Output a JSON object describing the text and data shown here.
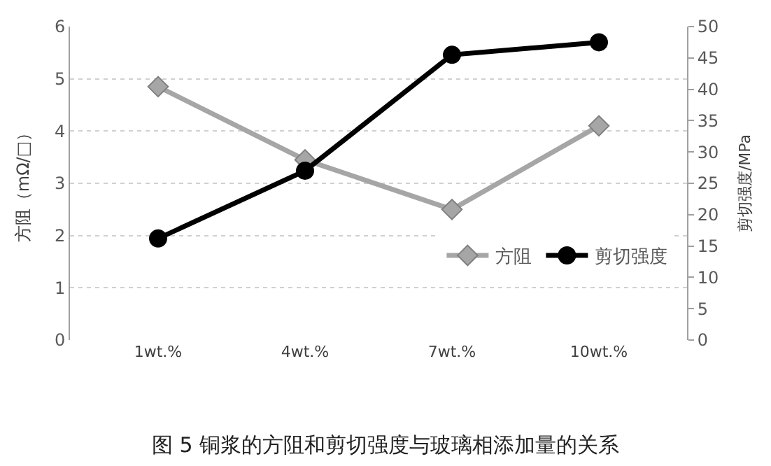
{
  "chart_data": {
    "type": "line",
    "title": "图 5 铜浆的方阻和剪切强度与玻璃相添加量的关系",
    "ylabel": "方阻（mΩ/□）",
    "y2label": "剪切强度/MPa",
    "categories": [
      "1wt.%",
      "4wt.%",
      "7wt.%",
      "10wt.%"
    ],
    "series": [
      {
        "name": "方阻",
        "color": "#a6a6a6",
        "values": [
          4.85,
          3.45,
          2.5,
          4.1
        ],
        "marker": "diamond"
      },
      {
        "name": "剪切强度",
        "color": "#000000",
        "values": [
          16.2,
          27,
          45.5,
          47.5
        ],
        "marker": "circle",
        "axis": "y2"
      }
    ],
    "ylim": [
      0,
      6
    ],
    "yticks": [
      0,
      1,
      2,
      3,
      4,
      5,
      6
    ],
    "y2lim": [
      0,
      50
    ],
    "y2ticks": [
      0,
      5,
      10,
      15,
      20,
      25,
      30,
      35,
      40,
      45,
      50
    ],
    "grid": "y",
    "legend": "right",
    "line_style": "solid"
  }
}
